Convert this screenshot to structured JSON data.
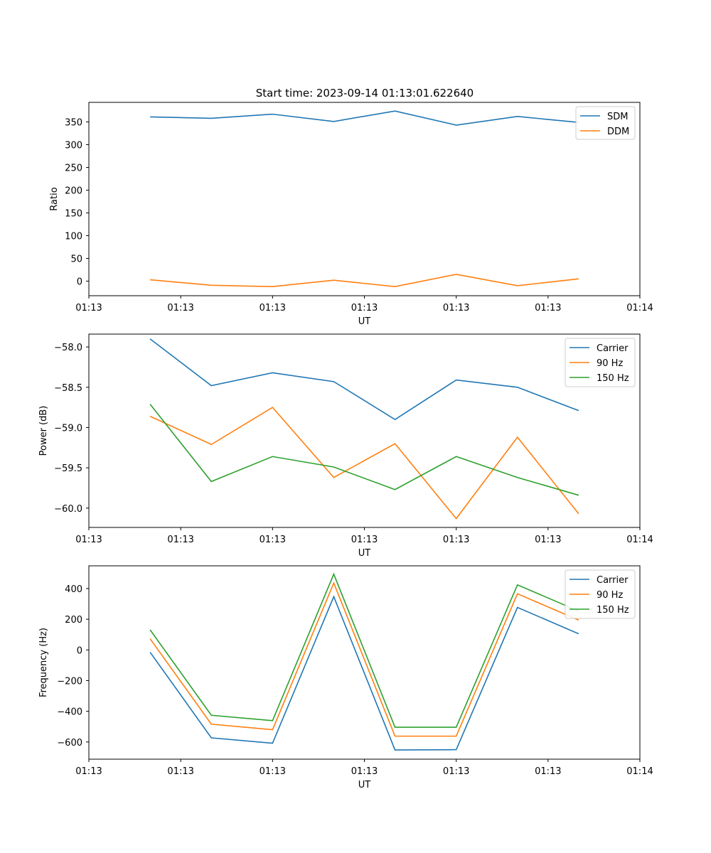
{
  "figure": {
    "suptitle": "Start time: 2023-09-14 01:13:01.622640"
  },
  "chart_data": [
    {
      "type": "line",
      "title": "Start time: 2023-09-14 01:13:01.622640",
      "xlabel": "UT",
      "ylabel": "Ratio",
      "x_index": [
        1,
        2,
        3,
        4,
        5,
        6,
        7,
        8
      ],
      "xlim": [
        0,
        9
      ],
      "xticks": [
        0,
        1.5,
        3,
        4.5,
        6,
        7.5,
        9
      ],
      "xtick_labels": [
        "01:13",
        "01:13",
        "01:13",
        "01:13",
        "01:13",
        "01:13",
        "01:14"
      ],
      "ylim": [
        -32,
        393
      ],
      "yticks": [
        0,
        50,
        100,
        150,
        200,
        250,
        300,
        350
      ],
      "ytick_labels": [
        "0",
        "50",
        "100",
        "150",
        "200",
        "250",
        "300",
        "350"
      ],
      "legend_position": "top-right",
      "series": [
        {
          "name": "SDM",
          "color": "#1f77b4",
          "values": [
            361,
            358,
            367,
            351,
            374,
            343,
            362,
            349
          ]
        },
        {
          "name": "DDM",
          "color": "#ff7f0e",
          "values": [
            3,
            -9,
            -12,
            2,
            -12,
            15,
            -10,
            5
          ]
        }
      ]
    },
    {
      "type": "line",
      "title": "",
      "xlabel": "UT",
      "ylabel": "Power (dB)",
      "x_index": [
        1,
        2,
        3,
        4,
        5,
        6,
        7,
        8
      ],
      "xlim": [
        0,
        9
      ],
      "xticks": [
        0,
        1.5,
        3,
        4.5,
        6,
        7.5,
        9
      ],
      "xtick_labels": [
        "01:13",
        "01:13",
        "01:13",
        "01:13",
        "01:13",
        "01:13",
        "01:14"
      ],
      "ylim": [
        -60.24,
        -57.84
      ],
      "yticks": [
        -58.0,
        -58.5,
        -59.0,
        -59.5,
        -60.0
      ],
      "ytick_labels": [
        "−58.0",
        "−58.5",
        "−59.0",
        "−59.5",
        "−60.0"
      ],
      "legend_position": "top-right",
      "series": [
        {
          "name": "Carrier",
          "color": "#1f77b4",
          "values": [
            -57.9,
            -58.48,
            -58.32,
            -58.43,
            -58.9,
            -58.41,
            -58.5,
            -58.79
          ]
        },
        {
          "name": "90 Hz",
          "color": "#ff7f0e",
          "values": [
            -58.86,
            -59.21,
            -58.75,
            -59.62,
            -59.2,
            -60.13,
            -59.12,
            -60.07
          ]
        },
        {
          "name": "150 Hz",
          "color": "#2ca02c",
          "values": [
            -58.71,
            -59.67,
            -59.36,
            -59.49,
            -59.77,
            -59.36,
            -59.62,
            -59.84
          ]
        }
      ]
    },
    {
      "type": "line",
      "title": "",
      "xlabel": "UT",
      "ylabel": "Frequency (Hz)",
      "x_index": [
        1,
        2,
        3,
        4,
        5,
        6,
        7,
        8
      ],
      "xlim": [
        0,
        9
      ],
      "xticks": [
        0,
        1.5,
        3,
        4.5,
        6,
        7.5,
        9
      ],
      "xtick_labels": [
        "01:13",
        "01:13",
        "01:13",
        "01:13",
        "01:13",
        "01:13",
        "01:14"
      ],
      "ylim": [
        -712,
        548
      ],
      "yticks": [
        400,
        200,
        0,
        -200,
        -400,
        -600
      ],
      "ytick_labels": [
        "400",
        "200",
        "0",
        "−200",
        "−400",
        "−600"
      ],
      "legend_position": "top-right",
      "series": [
        {
          "name": "Carrier",
          "color": "#1f77b4",
          "values": [
            -15,
            -573,
            -608,
            347,
            -652,
            -650,
            277,
            105
          ]
        },
        {
          "name": "90 Hz",
          "color": "#ff7f0e",
          "values": [
            73,
            -484,
            -520,
            436,
            -562,
            -562,
            366,
            194
          ]
        },
        {
          "name": "150 Hz",
          "color": "#2ca02c",
          "values": [
            131,
            -426,
            -461,
            494,
            -504,
            -504,
            424,
            253
          ]
        }
      ]
    }
  ]
}
